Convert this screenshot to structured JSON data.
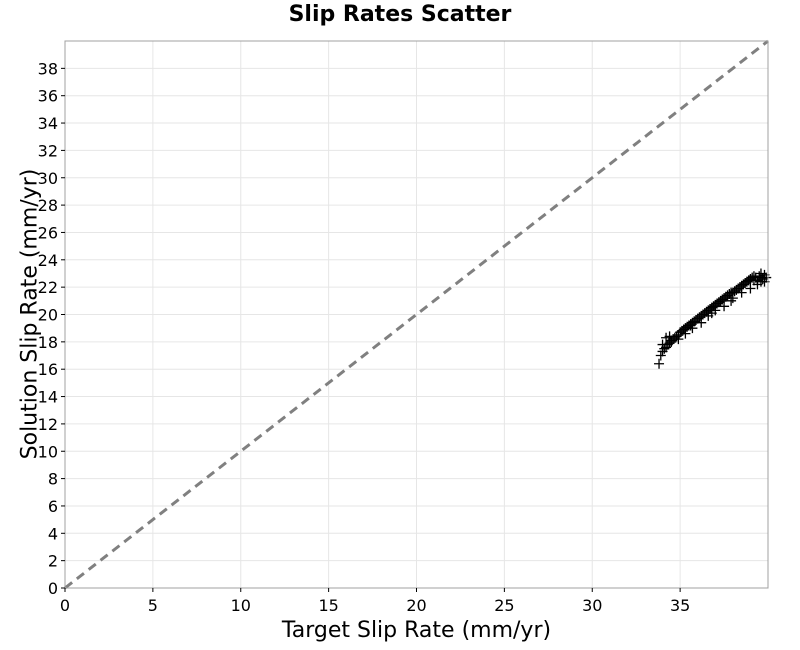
{
  "chart_data": {
    "type": "scatter",
    "title": "Slip Rates Scatter",
    "xlabel": "Target Slip Rate (mm/yr)",
    "ylabel": "Solution Slip Rate (mm/yr)",
    "xlim": [
      0,
      40
    ],
    "ylim": [
      0,
      40
    ],
    "x_ticks": [
      0,
      5,
      10,
      15,
      20,
      25,
      30,
      35
    ],
    "y_ticks": [
      0,
      2,
      4,
      6,
      8,
      10,
      12,
      14,
      16,
      18,
      20,
      22,
      24,
      26,
      28,
      30,
      32,
      34,
      36,
      38
    ],
    "grid": true,
    "legend": "none",
    "marker": "plus",
    "reference_line": {
      "x": [
        0,
        40
      ],
      "y": [
        0,
        40
      ],
      "style": "dashed",
      "color": "#808080"
    },
    "series": [
      {
        "color": "#000000",
        "x": [
          33.8,
          33.9,
          34.0,
          34.1,
          34.2,
          34.3,
          34.4,
          34.5,
          34.6,
          34.7,
          34.8,
          34.9,
          35.0,
          35.1,
          35.2,
          35.3,
          35.4,
          35.5,
          35.6,
          35.7,
          35.8,
          35.9,
          36.0,
          36.1,
          36.2,
          36.3,
          36.4,
          36.5,
          36.6,
          36.7,
          36.8,
          36.9,
          37.0,
          37.1,
          37.2,
          37.3,
          37.4,
          37.5,
          37.6,
          37.7,
          37.8,
          37.9,
          38.0,
          38.1,
          38.2,
          38.3,
          38.4,
          38.5,
          38.6,
          38.7,
          38.8,
          38.9,
          39.0,
          39.1,
          39.2,
          39.3,
          39.4,
          39.5,
          39.6,
          39.7,
          39.8,
          39.9,
          34.2,
          34.5,
          34.9,
          35.3,
          35.7,
          36.2,
          36.6,
          37.0,
          37.5,
          38.0,
          38.5,
          39.0,
          39.4,
          39.8,
          34.0,
          34.4,
          35.6,
          36.8,
          37.9,
          39.2,
          39.6
        ],
        "y": [
          16.4,
          17.0,
          17.3,
          17.5,
          17.6,
          17.8,
          17.9,
          18.1,
          18.2,
          18.3,
          18.4,
          18.5,
          18.7,
          18.8,
          18.9,
          19.0,
          19.1,
          19.2,
          19.3,
          19.4,
          19.5,
          19.6,
          19.7,
          19.8,
          19.9,
          20.0,
          20.1,
          20.2,
          20.3,
          20.4,
          20.5,
          20.6,
          20.7,
          20.8,
          20.9,
          21.0,
          21.1,
          21.2,
          21.3,
          21.4,
          21.5,
          21.6,
          21.6,
          21.7,
          21.8,
          21.9,
          22.0,
          22.1,
          22.2,
          22.3,
          22.4,
          22.5,
          22.6,
          22.7,
          22.8,
          22.7,
          22.5,
          22.8,
          22.4,
          22.6,
          22.9,
          22.7,
          18.3,
          18.0,
          18.2,
          18.6,
          19.0,
          19.4,
          19.9,
          20.3,
          20.6,
          21.2,
          21.6,
          21.9,
          22.2,
          22.4,
          17.8,
          18.4,
          19.2,
          20.1,
          21.0,
          22.5,
          23.0
        ]
      }
    ]
  }
}
